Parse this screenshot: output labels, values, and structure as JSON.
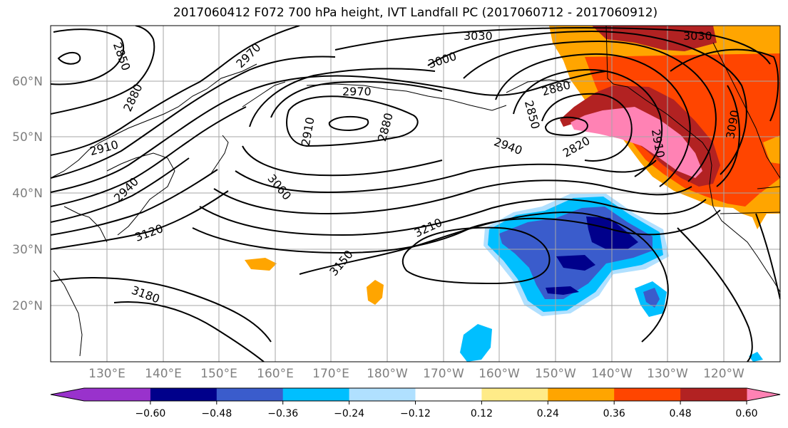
{
  "title": "2017060412 F072 700 hPa height, IVT Landfall PC (2017060712 - 2017060912)",
  "lat_labels": [
    "60°N",
    "50°N",
    "40°N",
    "30°N",
    "20°N"
  ],
  "lon_labels": [
    "130°E",
    "140°E",
    "150°E",
    "160°E",
    "170°E",
    "180°W",
    "170°W",
    "160°W",
    "150°W",
    "140°W",
    "130°W",
    "120°W"
  ],
  "contour_labels": [
    "2850",
    "2880",
    "2910",
    "2970",
    "2940",
    "3030",
    "3000",
    "2970",
    "2910",
    "2880",
    "2850",
    "2880",
    "2820",
    "2940",
    "2910",
    "3090",
    "3030",
    "3060",
    "3120",
    "3210",
    "3150",
    "3180"
  ],
  "colorbar": {
    "colors": [
      "#9932cc",
      "#00008b",
      "#3a5ccc",
      "#00bfff",
      "#b0e0ff",
      "#ffffff",
      "#ffeb88",
      "#ffa500",
      "#ff4500",
      "#b22222",
      "#ff82b4"
    ],
    "tick_labels": [
      "−0.60",
      "−0.48",
      "−0.36",
      "−0.24",
      "−0.12",
      "0.12",
      "0.24",
      "0.36",
      "0.48",
      "0.60"
    ]
  }
}
